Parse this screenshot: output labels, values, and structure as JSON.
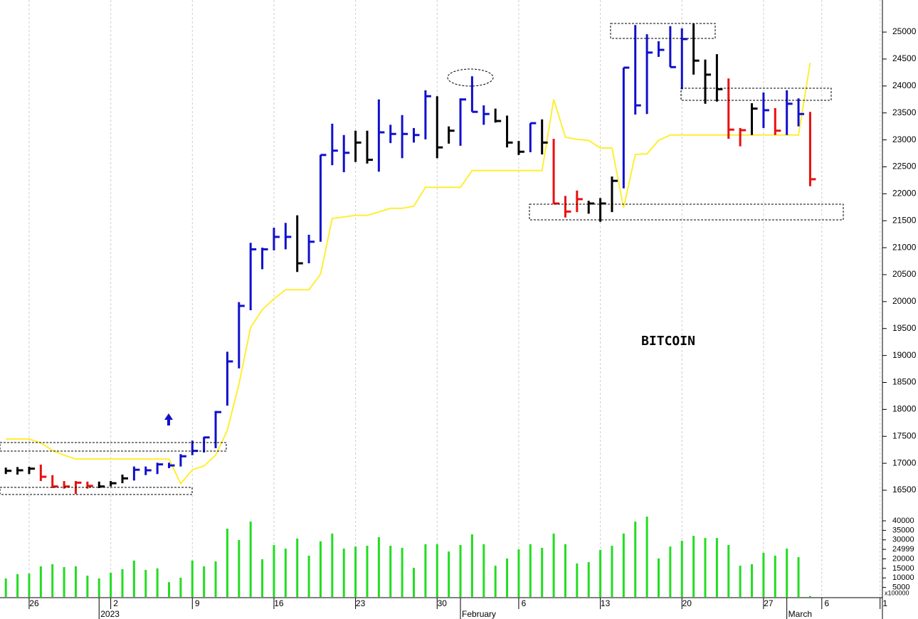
{
  "chart_data": [
    {
      "type": "ohlc",
      "title": "BITCOIN",
      "xlim": [
        -0.5,
        75.2
      ],
      "xticks": [
        {
          "value": 2,
          "label": "26"
        },
        {
          "value": 9,
          "label": "2"
        },
        {
          "value": 16,
          "label": "9"
        },
        {
          "value": 23,
          "label": "16"
        },
        {
          "value": 30,
          "label": "23"
        },
        {
          "value": 37,
          "label": "30"
        },
        {
          "value": 44,
          "label": "6"
        },
        {
          "value": 51,
          "label": "13"
        },
        {
          "value": 58,
          "label": "20"
        },
        {
          "value": 65,
          "label": "27"
        },
        {
          "value": 70,
          "label": "6"
        },
        {
          "value": 75,
          "label": "1"
        }
      ],
      "x_month_ticks": [
        {
          "value": 8,
          "label": "2023"
        },
        {
          "value": 39,
          "label": "February"
        },
        {
          "value": 67,
          "label": "March"
        }
      ],
      "ylim": [
        16355,
        25595
      ],
      "yticks": [
        16500,
        17000,
        17500,
        18000,
        18500,
        19000,
        19500,
        20000,
        20500,
        21000,
        21500,
        22000,
        22500,
        23000,
        23500,
        24000,
        24500,
        25000
      ],
      "grid": true,
      "high": [
        16920,
        16930,
        16935,
        16975,
        16780,
        16670,
        16670,
        16660,
        16660,
        16670,
        16790,
        16940,
        16940,
        17010,
        17010,
        17170,
        17420,
        17490,
        17970,
        19070,
        19990,
        21090,
        21000,
        21370,
        21460,
        21600,
        21240,
        22720,
        23300,
        23090,
        23170,
        23170,
        23750,
        23280,
        23460,
        23220,
        23920,
        23810,
        23250,
        23770,
        24180,
        23640,
        23580,
        23450,
        22980,
        23310,
        23380,
        23020,
        21960,
        22060,
        21870,
        21920,
        22320,
        24340,
        25130,
        24960,
        24830,
        25110,
        25070,
        25160,
        24490,
        24590,
        24140,
        23220,
        23680,
        23880,
        23590,
        23920,
        23770,
        23520
      ],
      "low": [
        16800,
        16790,
        16800,
        16670,
        16540,
        16530,
        16430,
        16530,
        16540,
        16570,
        16630,
        16680,
        16780,
        16800,
        16910,
        16940,
        17150,
        17200,
        17280,
        18070,
        18760,
        19840,
        20600,
        20950,
        20970,
        20550,
        20710,
        21110,
        22530,
        22400,
        22590,
        22560,
        22410,
        22940,
        22660,
        22950,
        23010,
        22660,
        22930,
        22890,
        23520,
        23280,
        23320,
        22860,
        22720,
        22770,
        22730,
        21810,
        21560,
        21660,
        21630,
        21480,
        21660,
        22100,
        23470,
        23480,
        24540,
        24350,
        23940,
        24210,
        23670,
        23710,
        23020,
        22880,
        23090,
        23220,
        23090,
        23090,
        23250,
        22140
      ],
      "close": [
        16860,
        16870,
        16900,
        16750,
        16570,
        16570,
        16640,
        16580,
        16570,
        16630,
        16720,
        16880,
        16870,
        16980,
        16960,
        17130,
        17230,
        17480,
        17950,
        18890,
        19920,
        20970,
        20970,
        21200,
        21200,
        20710,
        21110,
        22720,
        22800,
        22760,
        22950,
        22630,
        23140,
        23110,
        23110,
        23090,
        23810,
        22860,
        23170,
        23750,
        23520,
        23480,
        23350,
        22950,
        22780,
        23310,
        22950,
        21820,
        21670,
        21900,
        21820,
        21820,
        22240,
        24340,
        23640,
        24620,
        24670,
        24350,
        24870,
        24470,
        24210,
        23940,
        23190,
        23180,
        23580,
        23550,
        23170,
        23670,
        23480,
        22270
      ],
      "colors": [
        "#000000",
        "#000000",
        "#000000",
        "#e81010",
        "#e81010",
        "#e81010",
        "#e81010",
        "#e81010",
        "#000000",
        "#000000",
        "#000000",
        "#1010cc",
        "#1010cc",
        "#1010cc",
        "#1010cc",
        "#1010cc",
        "#1010cc",
        "#1010cc",
        "#1010cc",
        "#1010cc",
        "#1010cc",
        "#1010cc",
        "#1010cc",
        "#1010cc",
        "#1010cc",
        "#000000",
        "#1010cc",
        "#1010cc",
        "#1010cc",
        "#1010cc",
        "#000000",
        "#000000",
        "#1010cc",
        "#1010cc",
        "#1010cc",
        "#1010cc",
        "#1010cc",
        "#000000",
        "#000000",
        "#1010cc",
        "#1010cc",
        "#1010cc",
        "#000000",
        "#000000",
        "#000000",
        "#1010cc",
        "#000000",
        "#e81010",
        "#e81010",
        "#e81010",
        "#000000",
        "#000000",
        "#000000",
        "#1010cc",
        "#1010cc",
        "#1010cc",
        "#1010cc",
        "#1010cc",
        "#1010cc",
        "#000000",
        "#000000",
        "#000000",
        "#e81010",
        "#e81010",
        "#000000",
        "#1010cc",
        "#e81010",
        "#1010cc",
        "#1010cc",
        "#e81010"
      ],
      "line": {
        "color": "#ffee33",
        "values": [
          17450,
          17450,
          17450,
          17380,
          17240,
          17150,
          17080,
          17080,
          17080,
          17080,
          17080,
          17080,
          17080,
          17080,
          17080,
          16620,
          16880,
          16950,
          17150,
          17610,
          18470,
          19520,
          19850,
          20050,
          20220,
          20220,
          20220,
          20510,
          21540,
          21570,
          21600,
          21600,
          21660,
          21730,
          21730,
          21770,
          22120,
          22120,
          22120,
          22120,
          22430,
          22430,
          22430,
          22430,
          22430,
          22430,
          22430,
          23750,
          23050,
          23010,
          22990,
          22850,
          22850,
          21740,
          22730,
          22740,
          22990,
          23090,
          23090,
          23090,
          23090,
          23090,
          23090,
          23090,
          23090,
          23090,
          23090,
          23090,
          23090,
          24430
        ]
      }
    },
    {
      "type": "bar",
      "unit_label": "x100000",
      "color": "#22dd22",
      "ylim": [
        0,
        40000
      ],
      "yticks": [
        5000,
        10000,
        15000,
        20000,
        24999,
        30000,
        35000,
        40000
      ],
      "values": [
        9700,
        12000,
        12300,
        16100,
        17200,
        15700,
        16100,
        11200,
        9700,
        12700,
        14600,
        19100,
        14200,
        15000,
        7800,
        10100,
        19100,
        16100,
        18700,
        35900,
        29900,
        39600,
        19800,
        27300,
        25400,
        30700,
        21700,
        29200,
        33300,
        25400,
        26500,
        26900,
        31400,
        26900,
        25800,
        15300,
        27700,
        27700,
        23900,
        27300,
        32900,
        27700,
        16400,
        20200,
        25000,
        27700,
        25800,
        33300,
        27700,
        17600,
        18300,
        24700,
        26900,
        33300,
        39600,
        42200,
        20200,
        26500,
        29500,
        32100,
        31000,
        31000,
        27300,
        16400,
        17200,
        23200,
        21700,
        25400,
        20900,
        500
      ]
    }
  ]
}
